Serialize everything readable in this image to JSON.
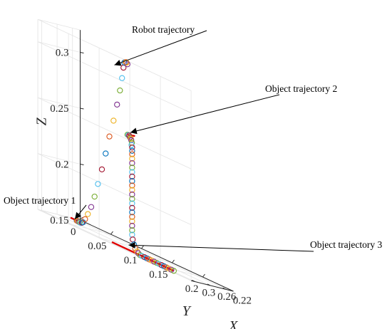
{
  "chart_data": {
    "type": "scatter",
    "title": "",
    "xlabel": "X",
    "ylabel": "Y",
    "zlabel": "Z",
    "x_ticks": [
      "0.22",
      "0.26",
      "0.3"
    ],
    "y_ticks": [
      "0",
      "0.05",
      "0.1",
      "0.15",
      "0.2"
    ],
    "z_ticks": [
      "0.15",
      "0.2",
      "0.25",
      "0.3"
    ],
    "xlim": [
      0.2,
      0.31
    ],
    "ylim": [
      0,
      0.25
    ],
    "zlim": [
      0.15,
      0.32
    ],
    "grid": true,
    "marker_colors": [
      "#0072bd",
      "#d95319",
      "#edb120",
      "#7e2f8e",
      "#77ac30",
      "#4dbeee",
      "#a2142f"
    ],
    "object_line_color": "#e00000",
    "annotations": [
      "Robot trajectory",
      "Object trajectory 1",
      "Object trajectory 2",
      "Object trajectory 3"
    ],
    "series": [
      {
        "name": "Robot trajectory",
        "marker": "circle",
        "points": [
          [
            0.225,
            0.01,
            0.15
          ],
          [
            0.226,
            0.011,
            0.15
          ],
          [
            0.227,
            0.013,
            0.15
          ],
          [
            0.228,
            0.015,
            0.15
          ],
          [
            0.23,
            0.018,
            0.15
          ],
          [
            0.232,
            0.021,
            0.15
          ],
          [
            0.235,
            0.025,
            0.151
          ],
          [
            0.239,
            0.029,
            0.152
          ],
          [
            0.243,
            0.035,
            0.156
          ],
          [
            0.247,
            0.042,
            0.162
          ],
          [
            0.251,
            0.05,
            0.17
          ],
          [
            0.255,
            0.058,
            0.181
          ],
          [
            0.259,
            0.066,
            0.194
          ],
          [
            0.263,
            0.075,
            0.209
          ],
          [
            0.266,
            0.083,
            0.225
          ],
          [
            0.269,
            0.091,
            0.242
          ],
          [
            0.271,
            0.099,
            0.258
          ],
          [
            0.273,
            0.106,
            0.274
          ],
          [
            0.275,
            0.112,
            0.288
          ],
          [
            0.276,
            0.116,
            0.3
          ],
          [
            0.277,
            0.119,
            0.31
          ],
          [
            0.278,
            0.121,
            0.315
          ],
          [
            0.279,
            0.124,
            0.316
          ],
          [
            0.28,
            0.126,
            0.316
          ],
          [
            0.281,
            0.128,
            0.315
          ],
          [
            0.281,
            0.128,
            0.252
          ],
          [
            0.282,
            0.13,
            0.252
          ],
          [
            0.283,
            0.132,
            0.252
          ],
          [
            0.284,
            0.134,
            0.251
          ],
          [
            0.285,
            0.135,
            0.251
          ],
          [
            0.286,
            0.137,
            0.25
          ],
          [
            0.287,
            0.138,
            0.249
          ],
          [
            0.287,
            0.139,
            0.247
          ],
          [
            0.288,
            0.139,
            0.245
          ],
          [
            0.288,
            0.14,
            0.243
          ],
          [
            0.288,
            0.14,
            0.24
          ],
          [
            0.288,
            0.14,
            0.237
          ],
          [
            0.288,
            0.14,
            0.233
          ],
          [
            0.288,
            0.14,
            0.229
          ],
          [
            0.288,
            0.14,
            0.225
          ],
          [
            0.288,
            0.14,
            0.221
          ],
          [
            0.288,
            0.14,
            0.217
          ],
          [
            0.288,
            0.14,
            0.213
          ],
          [
            0.288,
            0.14,
            0.209
          ],
          [
            0.288,
            0.14,
            0.205
          ],
          [
            0.288,
            0.14,
            0.201
          ],
          [
            0.288,
            0.14,
            0.197
          ],
          [
            0.288,
            0.14,
            0.193
          ],
          [
            0.288,
            0.14,
            0.189
          ],
          [
            0.288,
            0.14,
            0.185
          ],
          [
            0.288,
            0.14,
            0.181
          ],
          [
            0.288,
            0.14,
            0.177
          ],
          [
            0.288,
            0.14,
            0.173
          ],
          [
            0.288,
            0.14,
            0.169
          ],
          [
            0.288,
            0.14,
            0.165
          ],
          [
            0.288,
            0.141,
            0.161
          ],
          [
            0.288,
            0.143,
            0.157
          ],
          [
            0.288,
            0.145,
            0.154
          ],
          [
            0.288,
            0.148,
            0.152
          ],
          [
            0.288,
            0.15,
            0.151
          ],
          [
            0.288,
            0.153,
            0.15
          ],
          [
            0.288,
            0.156,
            0.15
          ],
          [
            0.288,
            0.16,
            0.15
          ],
          [
            0.288,
            0.164,
            0.15
          ],
          [
            0.288,
            0.168,
            0.15
          ],
          [
            0.288,
            0.172,
            0.15
          ],
          [
            0.288,
            0.176,
            0.15
          ],
          [
            0.288,
            0.18,
            0.15
          ],
          [
            0.288,
            0.184,
            0.15
          ],
          [
            0.288,
            0.188,
            0.15
          ],
          [
            0.288,
            0.192,
            0.15
          ],
          [
            0.288,
            0.196,
            0.15
          ],
          [
            0.288,
            0.2,
            0.15
          ],
          [
            0.288,
            0.204,
            0.15
          ],
          [
            0.288,
            0.208,
            0.15
          ]
        ]
      },
      {
        "name": "Object trajectory 1",
        "style": "line",
        "points": [
          [
            0.225,
            0.0,
            0.15
          ],
          [
            0.225,
            0.012,
            0.15
          ]
        ]
      },
      {
        "name": "Object trajectory 2",
        "style": "line",
        "points": [
          [
            0.255,
            0.124,
            0.252
          ],
          [
            0.281,
            0.128,
            0.252
          ]
        ]
      },
      {
        "name": "Object trajectory 3",
        "style": "line",
        "points": [
          [
            0.288,
            0.107,
            0.15
          ],
          [
            0.288,
            0.208,
            0.15
          ]
        ]
      }
    ]
  }
}
